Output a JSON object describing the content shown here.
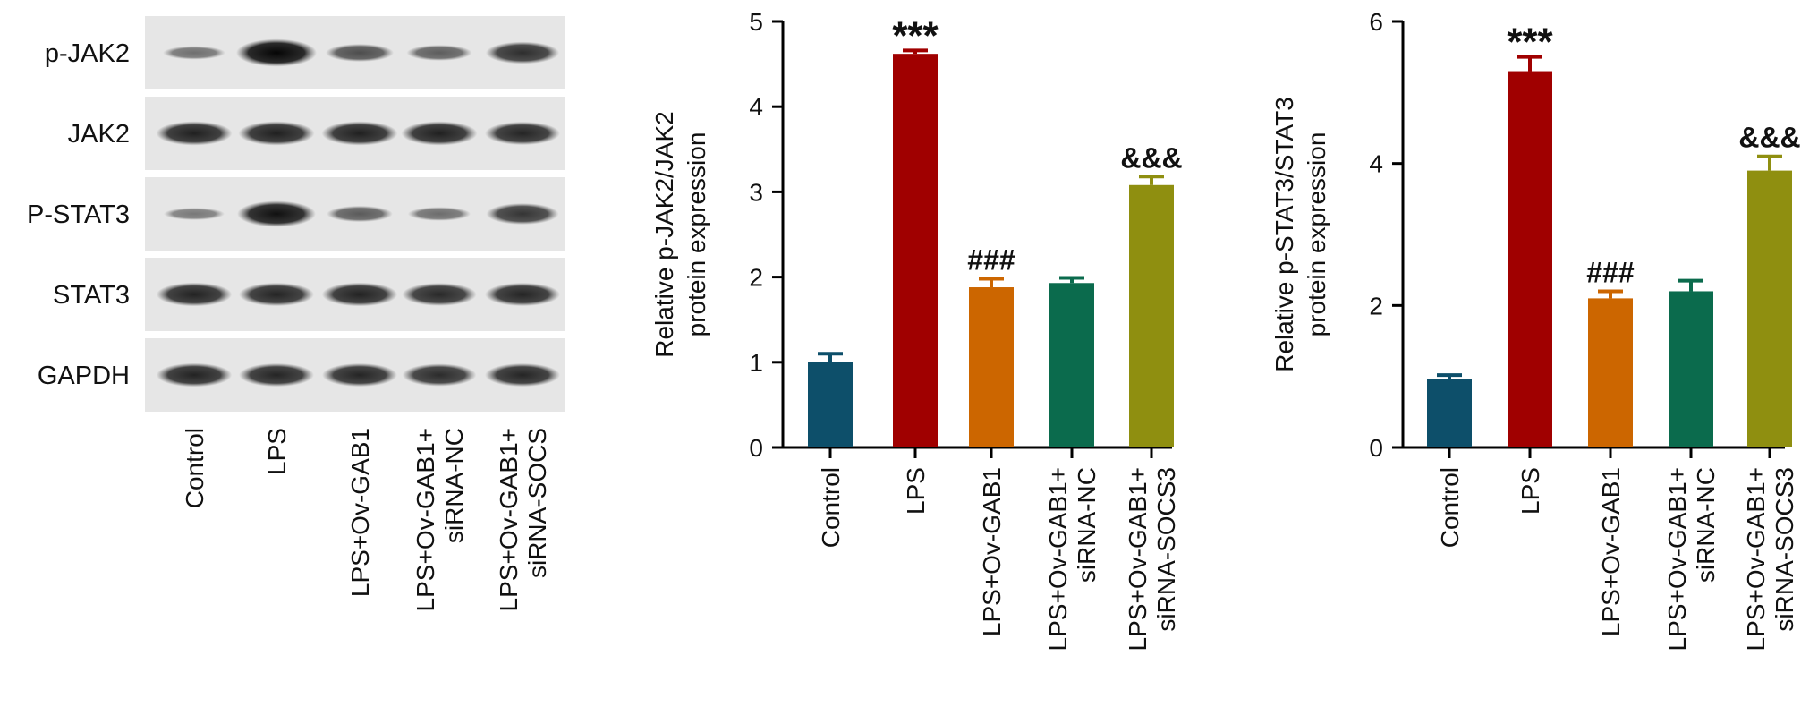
{
  "blot": {
    "rows": [
      {
        "label": "p-JAK2",
        "intensity": [
          0.28,
          1.0,
          0.5,
          0.4,
          0.72
        ]
      },
      {
        "label": "JAK2",
        "intensity": [
          0.82,
          0.82,
          0.82,
          0.82,
          0.78
        ]
      },
      {
        "label": "P-STAT3",
        "intensity": [
          0.22,
          0.92,
          0.42,
          0.3,
          0.68
        ]
      },
      {
        "label": "STAT3",
        "intensity": [
          0.8,
          0.78,
          0.8,
          0.76,
          0.78
        ]
      },
      {
        "label": "GAPDH",
        "intensity": [
          0.8,
          0.78,
          0.78,
          0.74,
          0.78
        ]
      }
    ],
    "lanes": [
      [
        "Control"
      ],
      [
        "LPS"
      ],
      [
        "LPS+Ov-GAB1"
      ],
      [
        "LPS+Ov-GAB1+",
        "siRNA-NC"
      ],
      [
        "LPS+Ov-GAB1+",
        "siRNA-SOCS"
      ]
    ]
  },
  "chart_data": [
    {
      "type": "bar",
      "categories": [
        [
          "Control"
        ],
        [
          "LPS"
        ],
        [
          "LPS+Ov-GAB1"
        ],
        [
          "LPS+Ov-GAB1+",
          "siRNA-NC"
        ],
        [
          "LPS+Ov-GAB1+",
          "siRNA-SOCS3"
        ]
      ],
      "values": [
        1.0,
        4.62,
        1.88,
        1.93,
        3.08
      ],
      "errors": [
        0.1,
        0.04,
        0.1,
        0.06,
        0.1
      ],
      "annotations": [
        "",
        "***",
        "###",
        "",
        "&&&"
      ],
      "colors": [
        "#0d4f6a",
        "#a00000",
        "#cc6600",
        "#0b6b4d",
        "#8f8f10"
      ],
      "ylabel": [
        "Relative p-JAK2/JAK2",
        "protein expression"
      ],
      "ylim": [
        0,
        5
      ],
      "yticks": [
        0,
        1,
        2,
        3,
        4,
        5
      ],
      "xlabel": "",
      "title": ""
    },
    {
      "type": "bar",
      "categories": [
        [
          "Control"
        ],
        [
          "LPS"
        ],
        [
          "LPS+Ov-GAB1"
        ],
        [
          "LPS+Ov-GAB1+",
          "siRNA-NC"
        ],
        [
          "LPS+Ov-GAB1+",
          "siRNA-SOCS3"
        ]
      ],
      "values": [
        0.97,
        5.3,
        2.1,
        2.2,
        3.9
      ],
      "errors": [
        0.05,
        0.2,
        0.1,
        0.15,
        0.2
      ],
      "annotations": [
        "",
        "***",
        "###",
        "",
        "&&&"
      ],
      "colors": [
        "#0d4f6a",
        "#a00000",
        "#cc6600",
        "#0b6b4d",
        "#8f8f10"
      ],
      "ylabel": [
        "Relative p-STAT3/STAT3",
        "protein expression"
      ],
      "ylim": [
        0,
        6
      ],
      "yticks": [
        0,
        2,
        4,
        6
      ],
      "xlabel": "",
      "title": ""
    }
  ]
}
